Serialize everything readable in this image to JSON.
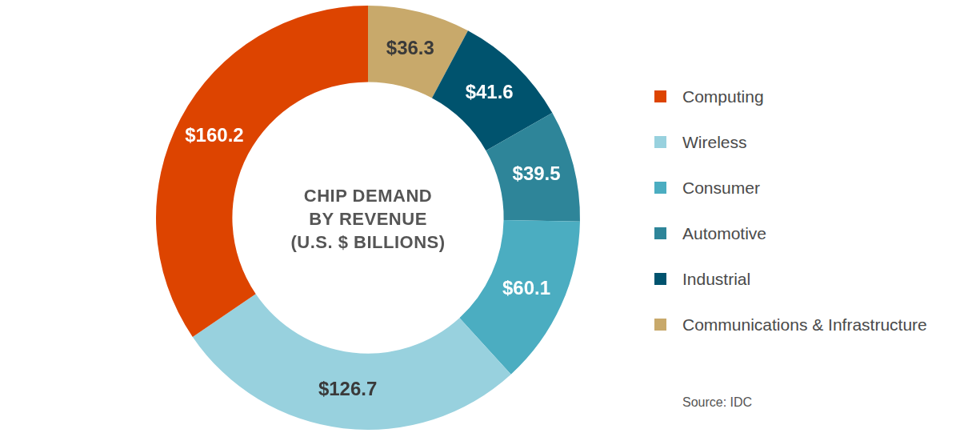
{
  "chart_data": {
    "type": "doughnut",
    "title": "CHIP DEMAND\nBY REVENUE\n(U.S. $ BILLIONS)",
    "categories": [
      "Communications & Infrastructure",
      "Industrial",
      "Automotive",
      "Consumer",
      "Wireless",
      "Computing"
    ],
    "values": [
      36.3,
      41.6,
      39.5,
      60.1,
      126.7,
      160.2
    ],
    "value_labels": [
      "$36.3",
      "$41.6",
      "$39.5",
      "$60.1",
      "$126.7",
      "$160.2"
    ],
    "colors": [
      "#c8a96b",
      "#00536e",
      "#2e8599",
      "#4badc1",
      "#98d1de",
      "#dd4400"
    ],
    "data_labels": true,
    "legend": "right",
    "annotations": [
      "Source: IDC"
    ]
  }
}
